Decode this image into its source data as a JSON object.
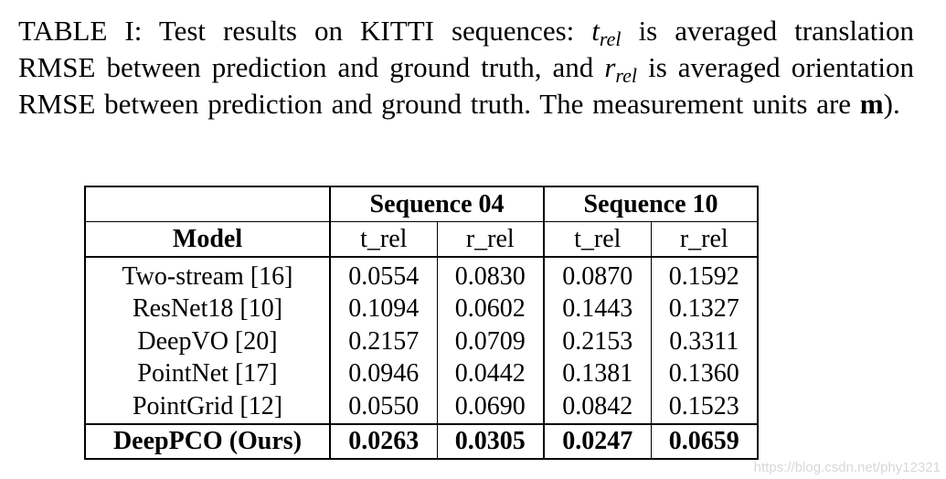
{
  "caption": {
    "label": "TABLE I:",
    "text_1": "Test results on KITTI sequences:",
    "t_symbol": "t",
    "t_subscript": "rel",
    "text_2": "is averaged translation RMSE between prediction and ground truth, and",
    "r_symbol": "r",
    "r_subscript": "rel",
    "text_3": "is averaged orientation RMSE between prediction and ground truth. The measurement units are",
    "unit": "m",
    "text_4": ")."
  },
  "table": {
    "group_headers": [
      "Sequence 04",
      "Sequence 10"
    ],
    "model_header": "Model",
    "sub_headers": [
      "t_rel",
      "r_rel",
      "t_rel",
      "r_rel"
    ],
    "rows": [
      {
        "model": "Two-stream [16]",
        "values": [
          "0.0554",
          "0.0830",
          "0.0870",
          "0.1592"
        ]
      },
      {
        "model": "ResNet18 [10]",
        "values": [
          "0.1094",
          "0.0602",
          "0.1443",
          "0.1327"
        ]
      },
      {
        "model": "DeepVO [20]",
        "values": [
          "0.2157",
          "0.0709",
          "0.2153",
          "0.3311"
        ]
      },
      {
        "model": "PointNet [17]",
        "values": [
          "0.0946",
          "0.0442",
          "0.1381",
          "0.1360"
        ]
      },
      {
        "model": "PointGrid [12]",
        "values": [
          "0.0550",
          "0.0690",
          "0.0842",
          "0.1523"
        ]
      }
    ],
    "ours_row": {
      "model": "DeepPCO (Ours)",
      "values": [
        "0.0263",
        "0.0305",
        "0.0247",
        "0.0659"
      ]
    }
  },
  "watermark": "https://blog.csdn.net/phy12321"
}
